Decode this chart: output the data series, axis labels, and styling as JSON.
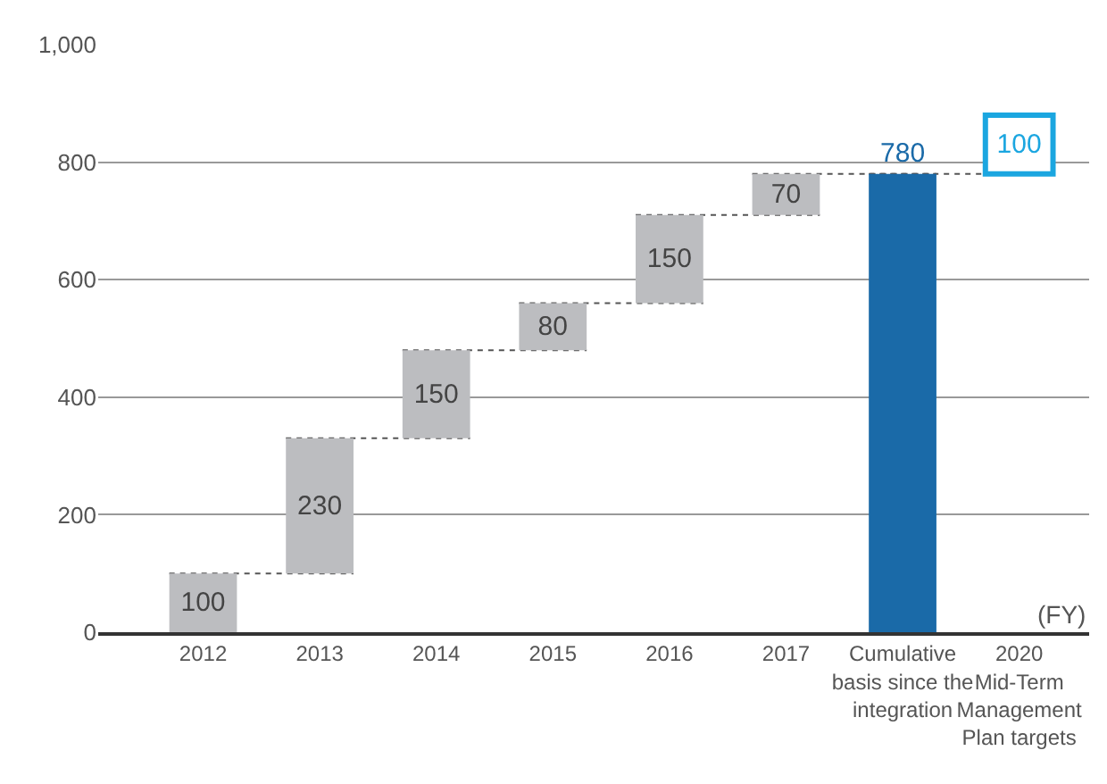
{
  "chart_data": {
    "type": "bar",
    "categories": [
      "2012",
      "2013",
      "2014",
      "2015",
      "2016",
      "2017",
      "Cumulative\nbasis since the\nintegration",
      "2020\nMid-Term\nManagement\nPlan targets"
    ],
    "values": [
      100,
      230,
      150,
      80,
      150,
      70,
      780,
      100
    ],
    "base": [
      0,
      100,
      330,
      480,
      560,
      710,
      0,
      780
    ],
    "colors": [
      "#bcbdc0",
      "#bcbdc0",
      "#bcbdc0",
      "#bcbdc0",
      "#bcbdc0",
      "#bcbdc0",
      "#1a6aa8",
      "#1ba6e0"
    ],
    "data_labels": true,
    "ylim": [
      0,
      1000
    ],
    "yticks": [
      0,
      200,
      400,
      600,
      800,
      {
        "value": 1000,
        "label": "1,000"
      }
    ],
    "grid": "y",
    "annotations": [
      "(FY)"
    ]
  }
}
